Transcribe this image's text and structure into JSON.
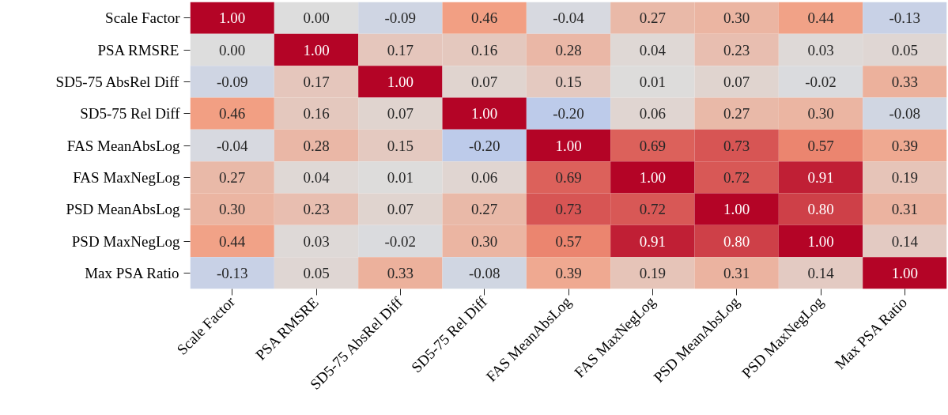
{
  "chart_data": {
    "type": "heatmap",
    "cell_labels": [
      [
        "1.00",
        "0.00",
        "-0.09",
        "0.46",
        "-0.04",
        "0.27",
        "0.30",
        "0.44",
        "-0.13"
      ],
      [
        "0.00",
        "1.00",
        "0.17",
        "0.16",
        "0.28",
        "0.04",
        "0.23",
        "0.03",
        "0.05"
      ],
      [
        "-0.09",
        "0.17",
        "1.00",
        "0.07",
        "0.15",
        "0.01",
        "0.07",
        "-0.02",
        "0.33"
      ],
      [
        "0.46",
        "0.16",
        "0.07",
        "1.00",
        "-0.20",
        "0.06",
        "0.27",
        "0.30",
        "-0.08"
      ],
      [
        "-0.04",
        "0.28",
        "0.15",
        "-0.20",
        "1.00",
        "0.69",
        "0.73",
        "0.57",
        "0.39"
      ],
      [
        "0.27",
        "0.04",
        "0.01",
        "0.06",
        "0.69",
        "1.00",
        "0.72",
        "0.91",
        "0.19"
      ],
      [
        "0.30",
        "0.23",
        "0.07",
        "0.27",
        "0.73",
        "0.72",
        "1.00",
        "0.80",
        "0.31"
      ],
      [
        "0.44",
        "0.03",
        "-0.02",
        "0.30",
        "0.57",
        "0.91",
        "0.80",
        "1.00",
        "0.14"
      ],
      [
        "-0.13",
        "0.05",
        "0.33",
        "-0.08",
        "0.39",
        "0.19",
        "0.31",
        "0.14",
        "1.00"
      ]
    ],
    "categories": [
      "Scale Factor",
      "PSA RMSRE",
      "SD5-75 AbsRel Diff",
      "SD5-75 Rel Diff",
      "FAS MeanAbsLog",
      "FAS MaxNegLog",
      "PSD MeanAbsLog",
      "PSD MaxNegLog",
      "Max PSA Ratio"
    ],
    "y_categories": [
      "Scale Factor",
      "PSA RMSRE",
      "SD5-75 AbsRel Diff",
      "SD5-75 Rel Diff",
      "FAS MeanAbsLog",
      "FAS MaxNegLog",
      "PSD MeanAbsLog",
      "PSD MaxNegLog",
      "Max PSA Ratio"
    ],
    "cells": [
      [
        1.0,
        0.0,
        -0.09,
        0.46,
        -0.04,
        0.27,
        0.3,
        0.44,
        -0.13
      ],
      [
        0.0,
        1.0,
        0.17,
        0.16,
        0.28,
        0.04,
        0.23,
        0.03,
        0.05
      ],
      [
        -0.09,
        0.17,
        1.0,
        0.07,
        0.15,
        0.01,
        0.07,
        -0.02,
        0.33
      ],
      [
        0.46,
        0.16,
        0.07,
        1.0,
        -0.2,
        0.06,
        0.27,
        0.3,
        -0.08
      ],
      [
        -0.04,
        0.28,
        0.15,
        -0.2,
        1.0,
        0.69,
        0.73,
        0.57,
        0.39
      ],
      [
        0.27,
        0.04,
        0.01,
        0.06,
        0.69,
        1.0,
        0.72,
        0.91,
        0.19
      ],
      [
        0.3,
        0.23,
        0.07,
        0.27,
        0.73,
        0.72,
        1.0,
        0.8,
        0.31
      ],
      [
        0.44,
        0.03,
        -0.02,
        0.3,
        0.57,
        0.91,
        0.8,
        1.0,
        0.14
      ],
      [
        -0.13,
        0.05,
        0.33,
        -0.08,
        0.39,
        0.19,
        0.31,
        0.14,
        1.0
      ]
    ],
    "data_labels": true
  }
}
